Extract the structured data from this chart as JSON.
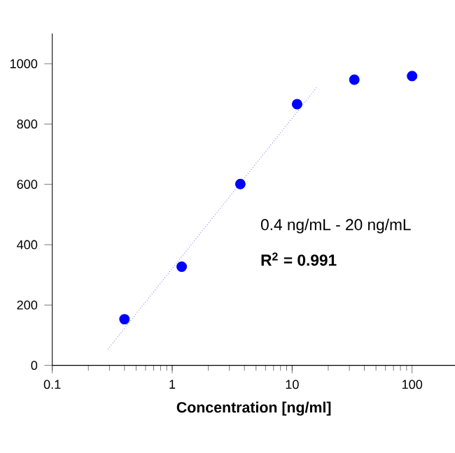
{
  "chart_data": {
    "type": "scatter",
    "xlabel": "Concentration [ng/ml]",
    "log": "x",
    "marker": "circle",
    "xlim": [
      0.1,
      230
    ],
    "ylim": [
      0,
      1100
    ],
    "xticks": [
      0.1,
      1,
      10,
      100
    ],
    "yticks": [
      0,
      200,
      400,
      600,
      800,
      1000
    ],
    "series": [
      {
        "color": "#0000ff",
        "x": [
          0.4,
          1.2,
          3.7,
          11,
          33,
          100
        ],
        "values": [
          153,
          327,
          601,
          866,
          947,
          959
        ]
      },
      {
        "type": "line",
        "line_style": "dotted",
        "marker": "none",
        "color": "#8080ff",
        "x": [
          0.29,
          16
        ],
        "values": [
          53,
          921
        ]
      }
    ],
    "annotations": [
      "0.4 ng/mL - 20 ng/mL",
      "**R$^{2}$ = 0.991**"
    ]
  }
}
